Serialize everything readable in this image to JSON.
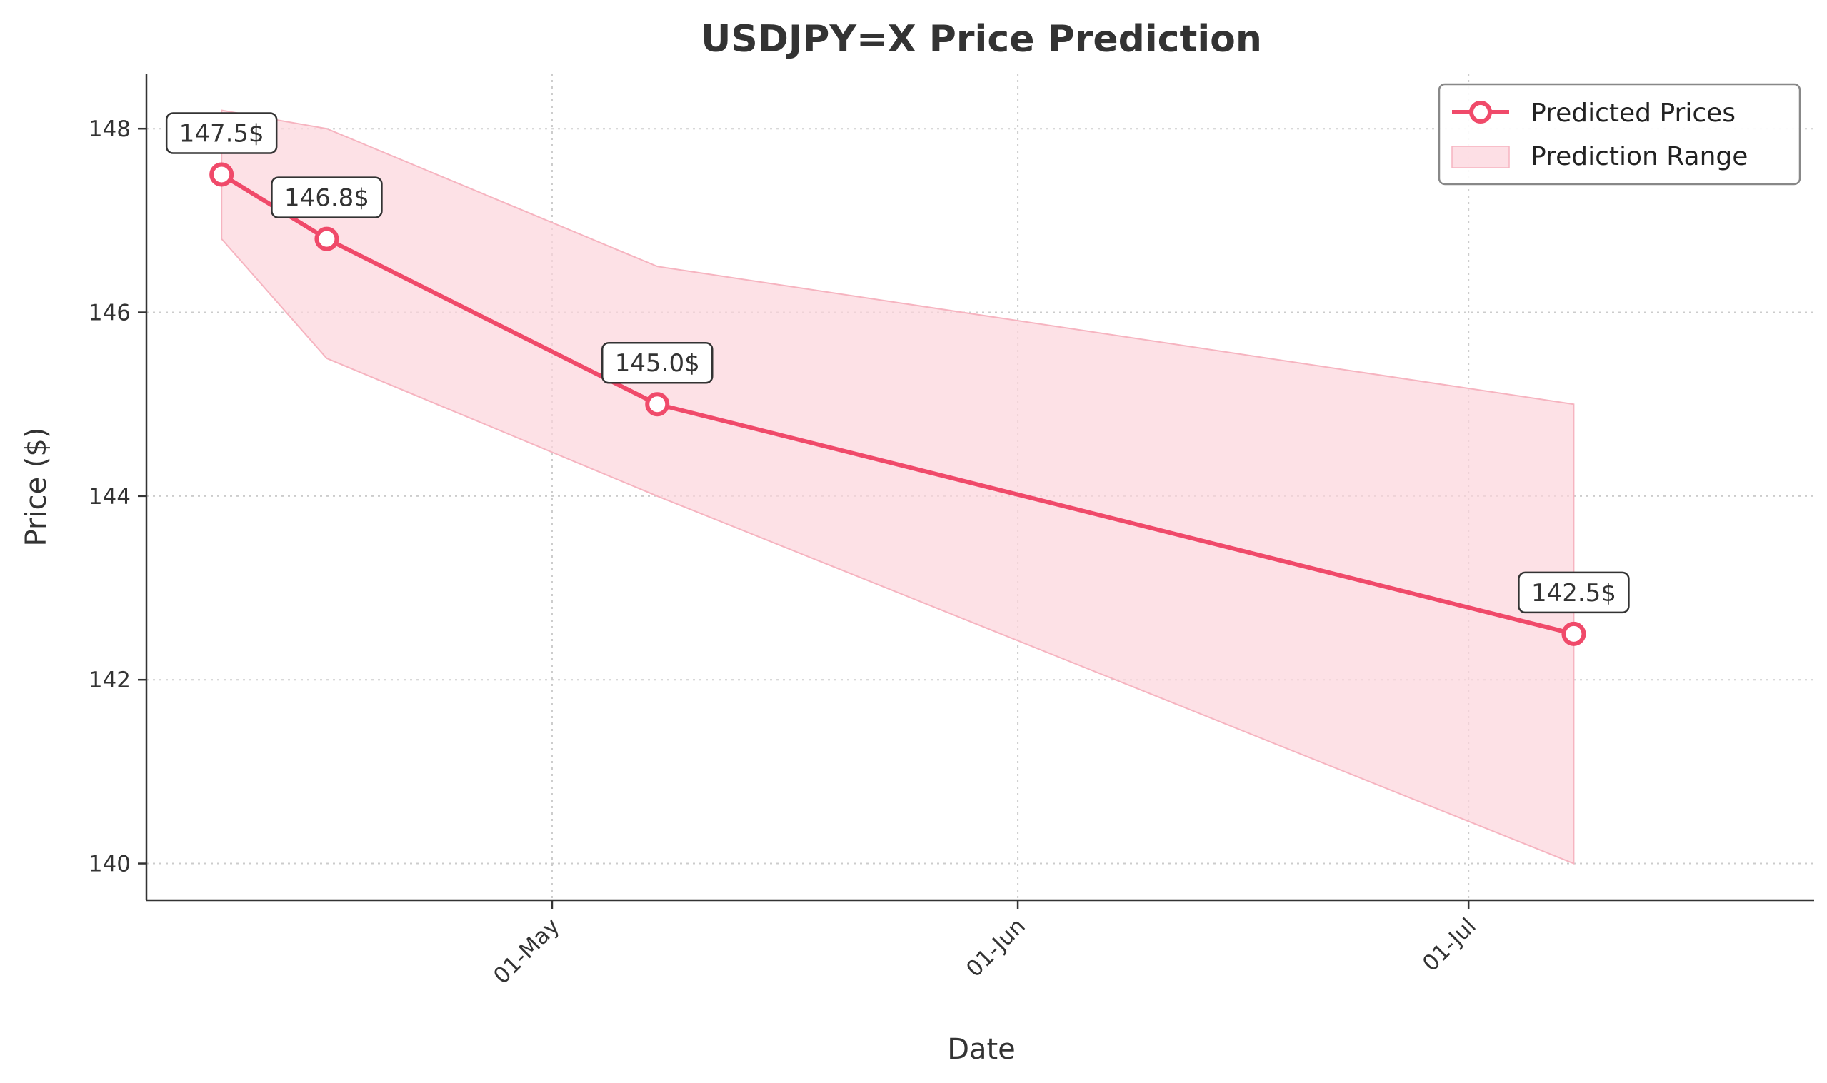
{
  "chart_data": {
    "type": "line",
    "title": "USDJPY=X Price Prediction",
    "xlabel": "Date",
    "ylabel": "Price ($)",
    "ylim": [
      139.6,
      148.6
    ],
    "xlim": [
      "2024-04-04",
      "2024-07-24"
    ],
    "y_ticks": [
      140,
      142,
      144,
      146,
      148
    ],
    "y_tick_labels": [
      "140",
      "142",
      "144",
      "146",
      "148"
    ],
    "x_ticks": [
      "2024-05-01",
      "2024-06-01",
      "2024-07-01"
    ],
    "x_tick_labels": [
      "01-May",
      "01-Jun",
      "01-Jul"
    ],
    "grid": true,
    "legend_position": "top-right",
    "colors": {
      "line": "#f04a6a",
      "band": "#fcd4dc",
      "band_edge": "#f6b4c0",
      "text": "#333333"
    },
    "series": [
      {
        "name": "Predicted Prices",
        "x": [
          "2024-04-09",
          "2024-04-16",
          "2024-05-08",
          "2024-07-08"
        ],
        "y": [
          147.5,
          146.8,
          145.0,
          142.5
        ],
        "labels": [
          "147.5$",
          "146.8$",
          "145.0$",
          "142.5$"
        ]
      }
    ],
    "band": {
      "name": "Prediction Range",
      "x": [
        "2024-04-09",
        "2024-04-16",
        "2024-05-08",
        "2024-07-08"
      ],
      "lower": [
        146.8,
        145.5,
        144.0,
        140.0
      ],
      "upper": [
        148.2,
        148.0,
        146.5,
        145.0
      ]
    }
  }
}
